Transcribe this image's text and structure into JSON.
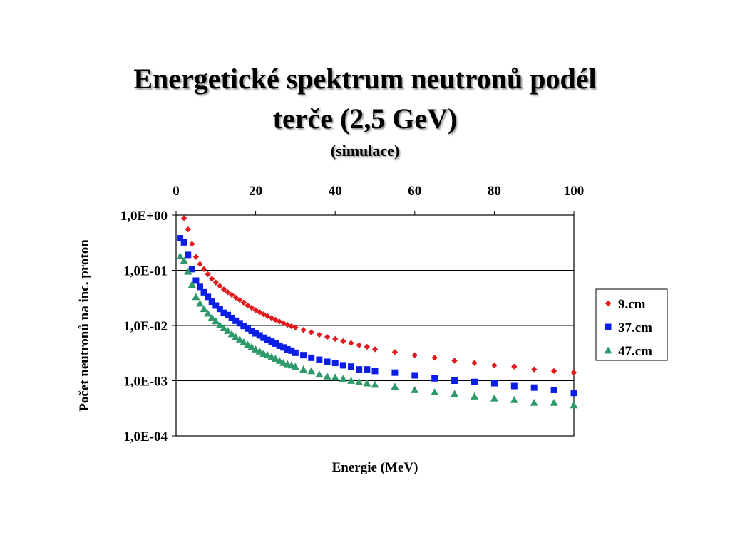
{
  "slide": {
    "title_line1": "Energetické spektrum neutronů podél",
    "title_line2": "terče (2,5 GeV)",
    "subtitle": "(simulace)"
  },
  "chart_data": {
    "type": "scatter",
    "xlabel": "Energie (MeV)",
    "ylabel": "Počet neutronů na inc. proton",
    "xlim": [
      0,
      100
    ],
    "ylim": [
      0.0001,
      1
    ],
    "yscale": "log",
    "x_axis_position": "top",
    "grid": "horizontal major",
    "legend_position": "right",
    "x_ticks": [
      "0",
      "20",
      "40",
      "60",
      "80",
      "100"
    ],
    "y_ticks": [
      "1,0E+00",
      "1,0E-01",
      "1,0E-02",
      "1,0E-03",
      "1,0E-04"
    ],
    "series": [
      {
        "name": "9.cm",
        "color": "#e31a1c",
        "marker": "diamond",
        "x": [
          2,
          3,
          4,
          5,
          6,
          7,
          8,
          9,
          10,
          11,
          12,
          13,
          14,
          15,
          16,
          17,
          18,
          19,
          20,
          21,
          22,
          23,
          24,
          25,
          26,
          27,
          28,
          29,
          30,
          32,
          34,
          36,
          38,
          40,
          42,
          44,
          46,
          48,
          50,
          55,
          60,
          65,
          70,
          75,
          80,
          85,
          90,
          95,
          100
        ],
        "y": [
          0.88,
          0.55,
          0.3,
          0.175,
          0.13,
          0.105,
          0.085,
          0.07,
          0.06,
          0.052,
          0.045,
          0.04,
          0.036,
          0.032,
          0.029,
          0.026,
          0.023,
          0.021,
          0.019,
          0.0175,
          0.016,
          0.0148,
          0.0137,
          0.0127,
          0.0118,
          0.011,
          0.0103,
          0.0097,
          0.0092,
          0.0083,
          0.0075,
          0.0068,
          0.0062,
          0.0057,
          0.0052,
          0.0048,
          0.0044,
          0.0041,
          0.0037,
          0.0033,
          0.0029,
          0.0026,
          0.0023,
          0.0021,
          0.0019,
          0.0018,
          0.0016,
          0.0015,
          0.0014
        ]
      },
      {
        "name": "37.cm",
        "color": "#0a1ee6",
        "marker": "square",
        "x": [
          1,
          2,
          3,
          4,
          5,
          6,
          7,
          8,
          9,
          10,
          11,
          12,
          13,
          14,
          15,
          16,
          17,
          18,
          19,
          20,
          21,
          22,
          23,
          24,
          25,
          26,
          27,
          28,
          29,
          30,
          32,
          34,
          36,
          38,
          40,
          42,
          44,
          46,
          48,
          50,
          55,
          60,
          65,
          70,
          75,
          80,
          85,
          90,
          95,
          100
        ],
        "y": [
          0.38,
          0.32,
          0.19,
          0.105,
          0.065,
          0.05,
          0.04,
          0.033,
          0.027,
          0.023,
          0.02,
          0.017,
          0.0155,
          0.0137,
          0.0122,
          0.011,
          0.0098,
          0.0088,
          0.008,
          0.0072,
          0.0066,
          0.006,
          0.0055,
          0.0051,
          0.0047,
          0.0043,
          0.004,
          0.0037,
          0.0035,
          0.0032,
          0.0029,
          0.0026,
          0.0024,
          0.0022,
          0.0021,
          0.0019,
          0.0018,
          0.0016,
          0.0016,
          0.0015,
          0.0014,
          0.00125,
          0.0011,
          0.001,
          0.00095,
          0.0009,
          0.0008,
          0.00075,
          0.00068,
          0.0006
        ]
      },
      {
        "name": "47.cm",
        "color": "#2e9a6a",
        "marker": "triangle",
        "x": [
          1,
          2,
          3,
          4,
          5,
          6,
          7,
          8,
          9,
          10,
          11,
          12,
          13,
          14,
          15,
          16,
          17,
          18,
          19,
          20,
          21,
          22,
          23,
          24,
          25,
          26,
          27,
          28,
          29,
          30,
          32,
          34,
          36,
          38,
          40,
          42,
          44,
          46,
          48,
          50,
          55,
          60,
          65,
          70,
          75,
          80,
          85,
          90,
          95,
          100
        ],
        "y": [
          0.18,
          0.15,
          0.095,
          0.055,
          0.033,
          0.025,
          0.02,
          0.0165,
          0.014,
          0.012,
          0.0102,
          0.009,
          0.008,
          0.007,
          0.0062,
          0.0056,
          0.005,
          0.0045,
          0.0041,
          0.0037,
          0.0034,
          0.0031,
          0.0029,
          0.0027,
          0.0025,
          0.0023,
          0.0021,
          0.002,
          0.0019,
          0.0018,
          0.0016,
          0.0015,
          0.0013,
          0.0012,
          0.00115,
          0.00108,
          0.001,
          0.00095,
          0.0009,
          0.00085,
          0.00078,
          0.00068,
          0.00062,
          0.00058,
          0.00052,
          0.00048,
          0.00045,
          0.0004,
          0.0004,
          0.00036
        ]
      }
    ]
  }
}
